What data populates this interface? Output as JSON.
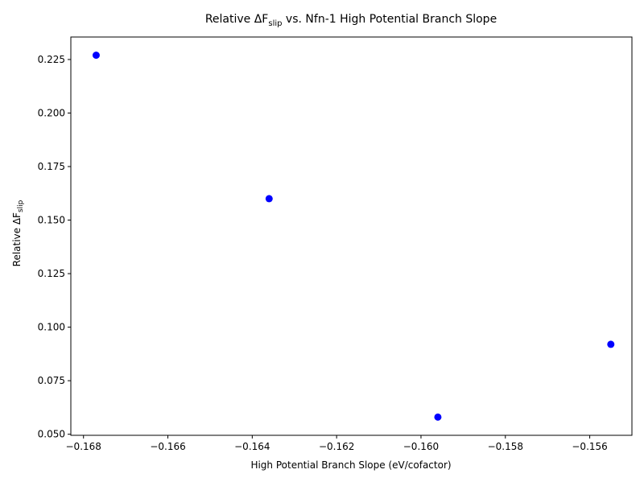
{
  "chart_data": {
    "type": "scatter",
    "title": {
      "prefix": "Relative ΔF",
      "subscript": "slip",
      "suffix": " vs. Nfn-1 High Potential Branch Slope"
    },
    "xlabel": "High Potential Branch Slope (eV/cofactor)",
    "ylabel": {
      "prefix": "Relative ΔF",
      "subscript": "slip"
    },
    "xlim": [
      -0.1683,
      -0.155
    ],
    "ylim": [
      0.0495,
      0.2355
    ],
    "x_ticks": [
      -0.168,
      -0.166,
      -0.164,
      -0.162,
      -0.16,
      -0.158,
      -0.156
    ],
    "x_tick_labels": [
      "−0.168",
      "−0.166",
      "−0.164",
      "−0.162",
      "−0.160",
      "−0.158",
      "−0.156"
    ],
    "y_ticks": [
      0.05,
      0.075,
      0.1,
      0.125,
      0.15,
      0.175,
      0.2,
      0.225
    ],
    "y_tick_labels": [
      "0.050",
      "0.075",
      "0.100",
      "0.125",
      "0.150",
      "0.175",
      "0.200",
      "0.225"
    ],
    "grid": false,
    "series": [
      {
        "color": "#0000ff",
        "points": [
          {
            "x": -0.1677,
            "y": 0.227
          },
          {
            "x": -0.1636,
            "y": 0.16
          },
          {
            "x": -0.1596,
            "y": 0.058
          },
          {
            "x": -0.1555,
            "y": 0.092
          }
        ]
      }
    ]
  }
}
